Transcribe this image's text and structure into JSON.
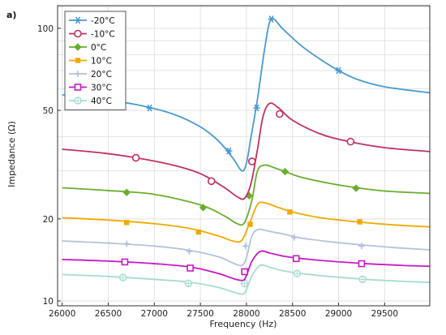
{
  "chart_data": {
    "type": "line",
    "panel_label": "a)",
    "xlabel": "Frequency (Hz)",
    "ylabel": "Impedance (Ω)",
    "xlim": [
      25950,
      29990
    ],
    "ylim": [
      9.6,
      121
    ],
    "yscale": "log",
    "grid": true,
    "legend_position": "top-left",
    "xticks": [
      26000,
      26500,
      27000,
      27500,
      28000,
      28500,
      29000,
      29500
    ],
    "xtick_labels": [
      "26000",
      "26500",
      "27000",
      "27500",
      "28000",
      "28500",
      "29000",
      "29500"
    ],
    "yticks": [
      10,
      20,
      50,
      100
    ],
    "ytick_labels": [
      "10",
      "20",
      "50",
      "100"
    ],
    "series": [
      {
        "name": "-20°C",
        "color": "#4a9ad4",
        "marker": "asterisk",
        "x": [
          26000,
          26400,
          26800,
          27200,
          27500,
          27700,
          27850,
          27950,
          28000,
          28050,
          28120,
          28200,
          28270,
          28400,
          28600,
          28800,
          29000,
          29200,
          29500,
          29990
        ],
        "y": [
          57,
          55,
          52.5,
          48.5,
          43.5,
          38.5,
          33.5,
          30,
          32,
          40,
          55,
          85,
          108,
          99,
          86,
          77,
          70,
          65,
          61,
          58
        ],
        "marker_x": [
          26950,
          27810,
          28110,
          28270,
          29000
        ],
        "marker_y": [
          51,
          35.5,
          51,
          108,
          70
        ]
      },
      {
        "name": "-10°C",
        "color": "#c0325e",
        "marker": "open-circle",
        "x": [
          26000,
          26400,
          26800,
          27200,
          27500,
          27750,
          27900,
          27980,
          28050,
          28120,
          28180,
          28250,
          28350,
          28500,
          28800,
          29100,
          29500,
          29990
        ],
        "y": [
          36,
          35,
          33.5,
          31.5,
          29.3,
          26.2,
          24.1,
          23.8,
          27,
          36,
          47.5,
          53,
          51,
          46,
          41,
          38.5,
          36.5,
          35.3
        ],
        "marker_x": [
          26800,
          27620,
          28060,
          28360,
          29130
        ],
        "marker_y": [
          33.5,
          27.5,
          32.5,
          48.5,
          38.4
        ]
      },
      {
        "name": "0°C",
        "color": "#6aae2e",
        "marker": "diamond",
        "x": [
          26000,
          26500,
          27000,
          27500,
          27750,
          27900,
          27980,
          28060,
          28120,
          28200,
          28300,
          28420,
          28600,
          28900,
          29200,
          29500,
          29990
        ],
        "y": [
          26,
          25.4,
          24.6,
          22.5,
          20.6,
          19.2,
          19.4,
          23.5,
          30,
          31.5,
          30.8,
          29.8,
          28.4,
          27,
          26,
          25.3,
          24.8
        ],
        "marker_x": [
          26700,
          27530,
          28030,
          28420,
          29190
        ],
        "marker_y": [
          25,
          22,
          24.3,
          29.8,
          25.9
        ]
      },
      {
        "name": "10°C",
        "color": "#f2a900",
        "marker": "filled-square",
        "x": [
          26000,
          26500,
          27000,
          27400,
          27700,
          27850,
          27950,
          28040,
          28120,
          28200,
          28350,
          28500,
          28800,
          29200,
          29600,
          29990
        ],
        "y": [
          20.2,
          19.8,
          19.2,
          18.4,
          17.3,
          16.6,
          16.7,
          19.5,
          22.6,
          22.9,
          22,
          21.2,
          20.2,
          19.5,
          19,
          18.7
        ],
        "marker_x": [
          26700,
          27480,
          28040,
          28470,
          29230
        ],
        "marker_y": [
          19.4,
          17.9,
          19.1,
          21.2,
          19.5
        ]
      },
      {
        "name": "20°C",
        "color": "#b3c4db",
        "marker": "plus-star",
        "x": [
          26000,
          26500,
          27000,
          27400,
          27700,
          27850,
          27950,
          28000,
          28060,
          28130,
          28250,
          28400,
          28600,
          28900,
          29300,
          29600,
          29990
        ],
        "y": [
          16.6,
          16.3,
          15.9,
          15.3,
          14.5,
          13.8,
          13.5,
          14.4,
          17.3,
          18.3,
          18,
          17.6,
          17,
          16.5,
          16,
          15.7,
          15.4
        ],
        "marker_x": [
          26700,
          27380,
          27990,
          28520,
          29250
        ],
        "marker_y": [
          16.2,
          15.2,
          15.9,
          17.1,
          15.9
        ]
      },
      {
        "name": "30°C",
        "color": "#c819c8",
        "marker": "open-square",
        "x": [
          26000,
          26500,
          27000,
          27400,
          27700,
          27850,
          27960,
          28000,
          28060,
          28150,
          28250,
          28400,
          28600,
          28900,
          29300,
          29700,
          29990
        ],
        "y": [
          14.2,
          14,
          13.7,
          13.3,
          12.6,
          12.1,
          11.9,
          12.4,
          14,
          15.2,
          15,
          14.6,
          14.3,
          14,
          13.7,
          13.5,
          13.4
        ],
        "marker_x": [
          26680,
          27390,
          27980,
          28540,
          29250
        ],
        "marker_y": [
          13.9,
          13.2,
          12.8,
          14.3,
          13.7
        ]
      },
      {
        "name": "40°C",
        "color": "#a7dcd2",
        "marker": "open-circle-plus",
        "x": [
          26000,
          26500,
          27000,
          27400,
          27700,
          27850,
          27960,
          28000,
          28060,
          28150,
          28250,
          28400,
          28600,
          28900,
          29300,
          29700,
          29990
        ],
        "y": [
          12.5,
          12.3,
          12,
          11.7,
          11.2,
          10.8,
          10.6,
          11,
          12.4,
          13.5,
          13.3,
          12.9,
          12.6,
          12.3,
          12,
          11.8,
          11.7
        ],
        "marker_x": [
          26660,
          27370,
          27980,
          28550,
          29260
        ],
        "marker_y": [
          12.2,
          11.6,
          11.6,
          12.6,
          12
        ]
      }
    ]
  }
}
